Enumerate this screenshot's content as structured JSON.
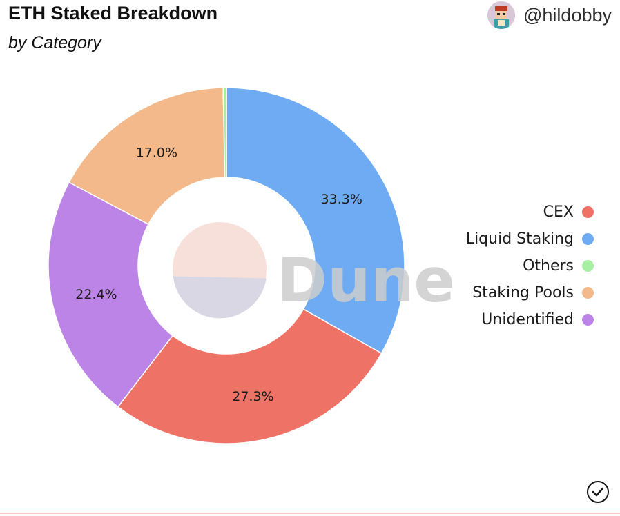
{
  "header": {
    "title": "ETH Staked Breakdown",
    "subtitle": "by Category",
    "author": "@hildobby"
  },
  "watermark": "Dune",
  "icons": {
    "avatar": "user-avatar-icon",
    "check": "checkmark-circle-icon"
  },
  "chart_data": {
    "type": "pie",
    "style": "donut",
    "title": "ETH Staked Breakdown",
    "subtitle": "by Category",
    "legend_position": "right",
    "slices": [
      {
        "name": "Liquid Staking",
        "value": 33.3,
        "label": "33.3%",
        "color": "#6fabf2"
      },
      {
        "name": "CEX",
        "value": 27.3,
        "label": "27.3%",
        "color": "#ee7265"
      },
      {
        "name": "Unidentified",
        "value": 22.4,
        "label": "22.4%",
        "color": "#bb84e6"
      },
      {
        "name": "Staking Pools",
        "value": 17.0,
        "label": "17.0%",
        "color": "#f4b98a"
      },
      {
        "name": "Others",
        "value": 0.3,
        "label": "",
        "color": "#a7f0a3"
      }
    ],
    "legend": [
      {
        "name": "CEX",
        "color": "#ee7265"
      },
      {
        "name": "Liquid Staking",
        "color": "#6fabf2"
      },
      {
        "name": "Others",
        "color": "#a7f0a3"
      },
      {
        "name": "Staking Pools",
        "color": "#f4b98a"
      },
      {
        "name": "Unidentified",
        "color": "#bb84e6"
      }
    ]
  }
}
